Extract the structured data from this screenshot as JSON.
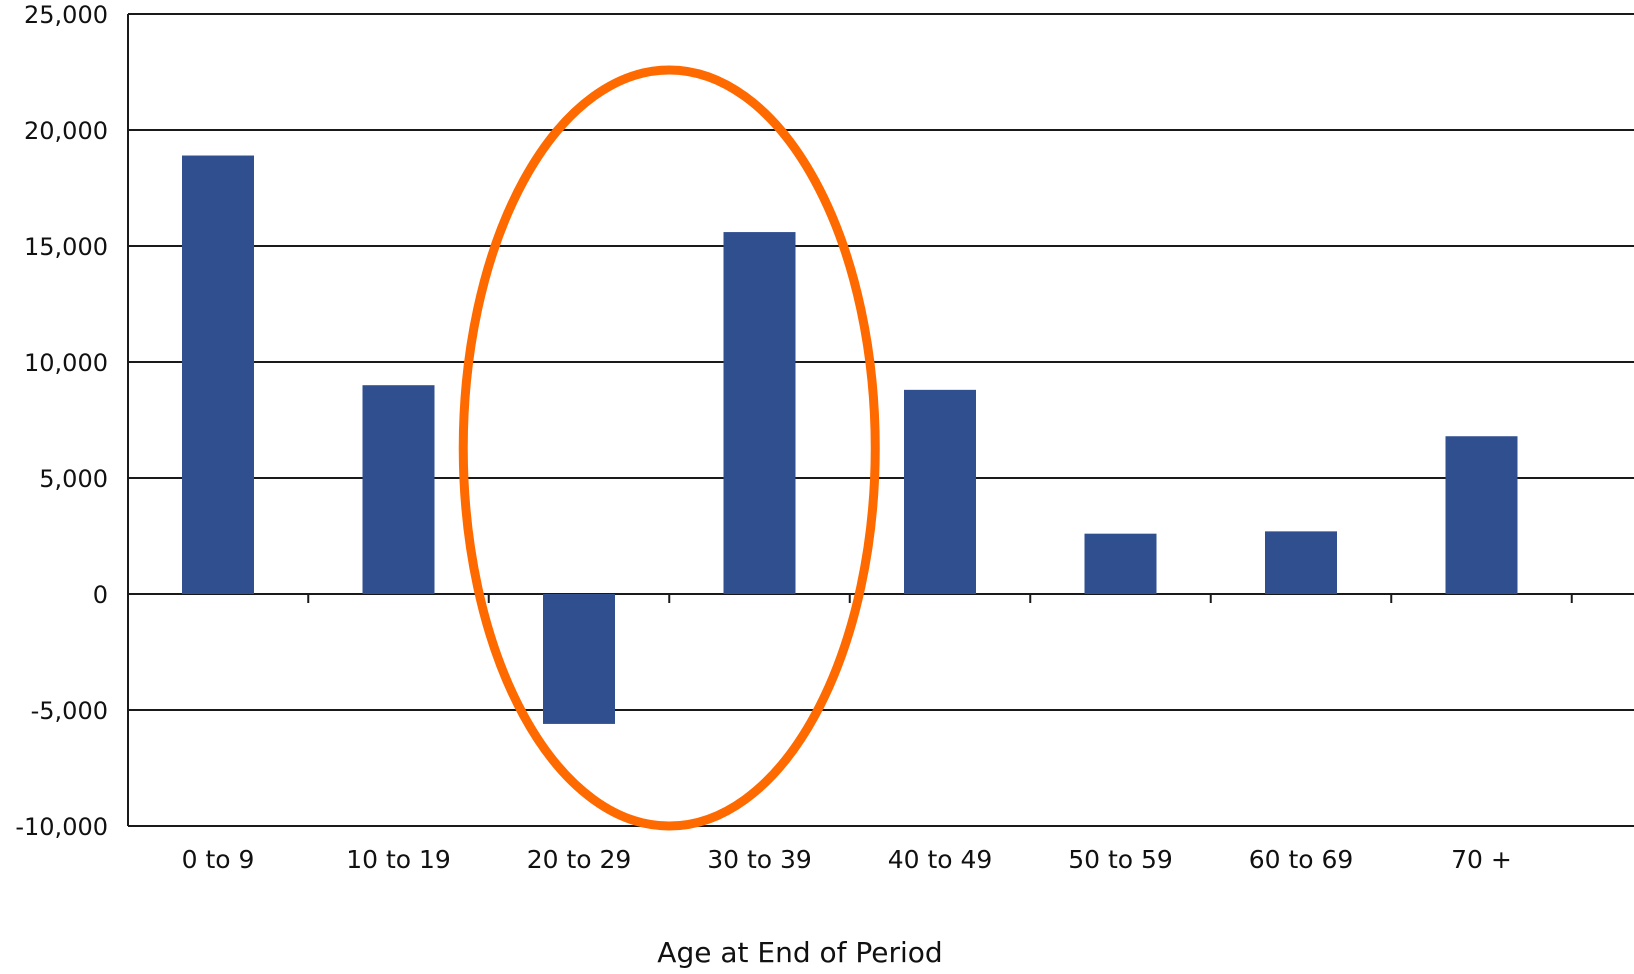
{
  "chart_data": {
    "type": "bar",
    "categories": [
      "0 to 9",
      "10 to 19",
      "20 to 29",
      "30 to 39",
      "40 to 49",
      "50 to 59",
      "60 to 69",
      "70 +"
    ],
    "values": [
      18900,
      9000,
      -5600,
      15600,
      8800,
      2600,
      2700,
      6800
    ],
    "title": "",
    "xlabel": "Age at End of Period",
    "ylabel": "",
    "ylim": [
      -10000,
      25000
    ],
    "yticks": [
      25000,
      20000,
      15000,
      10000,
      5000,
      0,
      -5000,
      -10000
    ],
    "ytick_labels": [
      "25,000",
      "20,000",
      "15,000",
      "10,000",
      "5,000",
      "0",
      "-5,000",
      "-10,000"
    ],
    "grid": true,
    "legend": "none",
    "colors": {
      "bar": "#2f4f8f",
      "annotation": "#ff6a00",
      "grid": "#1a1a1a",
      "text": "#111111"
    },
    "annotations": [
      {
        "type": "ellipse",
        "encloses": [
          "20 to 29",
          "30 to 39"
        ],
        "color": "#ff6a00"
      }
    ]
  }
}
